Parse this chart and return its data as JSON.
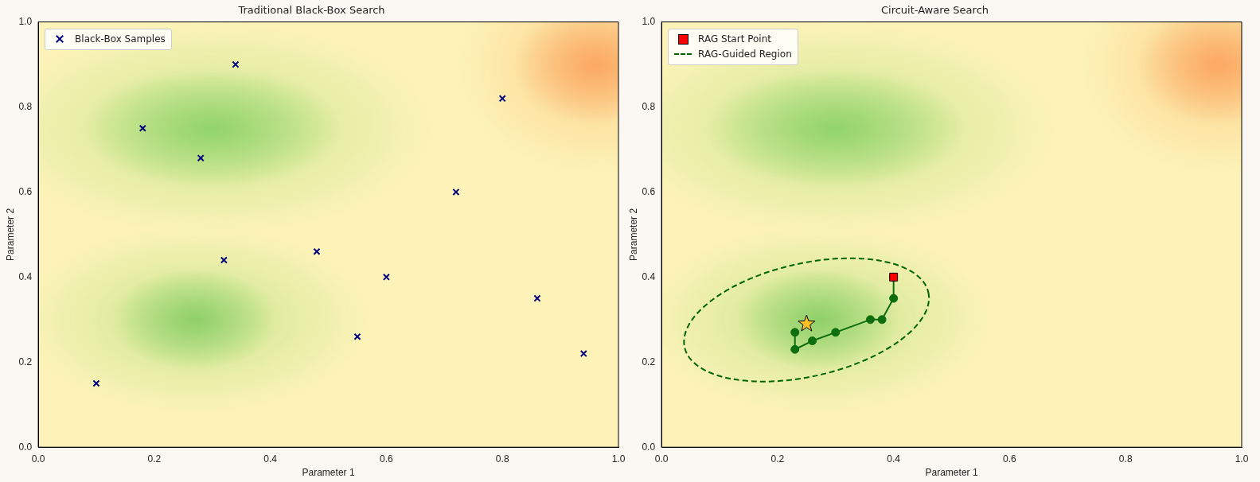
{
  "chart_data": [
    {
      "type": "scatter",
      "title": "Traditional Black-Box Search",
      "xlabel": "Parameter 1",
      "ylabel": "Parameter 2",
      "xlim": [
        0,
        1
      ],
      "ylim": [
        0,
        1
      ],
      "xticks": [
        {
          "value": 0,
          "label": "0.0"
        },
        {
          "value": 0.2,
          "label": "0.2"
        },
        {
          "value": 0.4,
          "label": "0.4"
        },
        {
          "value": 0.6,
          "label": "0.6"
        },
        {
          "value": 0.8,
          "label": "0.8"
        },
        {
          "value": 1,
          "label": "1.0"
        }
      ],
      "yticks": [
        {
          "value": 0,
          "label": "0.0"
        },
        {
          "value": 0.2,
          "label": "0.2"
        },
        {
          "value": 0.4,
          "label": "0.4"
        },
        {
          "value": 0.6,
          "label": "0.6"
        },
        {
          "value": 0.8,
          "label": "0.8"
        },
        {
          "value": 1,
          "label": "1.0"
        }
      ],
      "legend": "top left",
      "series": [
        {
          "name": "Black-Box Samples",
          "type": "scatter",
          "marker": "cross",
          "color": "#000080",
          "x": [
            0.1,
            0.18,
            0.28,
            0.34,
            0.32,
            0.48,
            0.55,
            0.6,
            0.72,
            0.8,
            0.86,
            0.94
          ],
          "values": [
            0.15,
            0.75,
            0.68,
            0.9,
            0.44,
            0.46,
            0.26,
            0.4,
            0.6,
            0.82,
            0.35,
            0.22
          ]
        }
      ]
    },
    {
      "type": "scatter",
      "title": "Circuit-Aware Search",
      "annotations": [
        "RAG-Guided Region"
      ],
      "xlabel": "Parameter 1",
      "ylabel": "Parameter 2",
      "xlim": [
        0,
        1
      ],
      "ylim": [
        0,
        1
      ],
      "xticks": [
        {
          "value": 0,
          "label": "0.0"
        },
        {
          "value": 0.2,
          "label": "0.2"
        },
        {
          "value": 0.4,
          "label": "0.4"
        },
        {
          "value": 0.6,
          "label": "0.6"
        },
        {
          "value": 0.8,
          "label": "0.8"
        },
        {
          "value": 1,
          "label": "1.0"
        }
      ],
      "yticks": [
        {
          "value": 0,
          "label": "0.0"
        },
        {
          "value": 0.2,
          "label": "0.2"
        },
        {
          "value": 0.4,
          "label": "0.4"
        },
        {
          "value": 0.6,
          "label": "0.6"
        },
        {
          "value": 0.8,
          "label": "0.8"
        },
        {
          "value": 1,
          "label": "1.0"
        }
      ],
      "legend": "top left",
      "series": [
        {
          "type": "line",
          "marker": "circle",
          "line_style": "solid",
          "color": "#0e6e0e",
          "x": [
            0.4,
            0.4,
            0.38,
            0.36,
            0.3,
            0.26,
            0.23,
            0.23
          ],
          "values": [
            0.4,
            0.35,
            0.3,
            0.3,
            0.27,
            0.25,
            0.23,
            0.27
          ]
        },
        {
          "type": "scatter",
          "marker": "star",
          "color": "#ffc125",
          "x": [
            0.25
          ],
          "values": [
            0.29
          ]
        },
        {
          "name": "RAG Start Point",
          "type": "scatter",
          "marker": "square",
          "color": "#ff0000",
          "x": [
            0.4
          ],
          "values": [
            0.4
          ]
        }
      ]
    }
  ]
}
